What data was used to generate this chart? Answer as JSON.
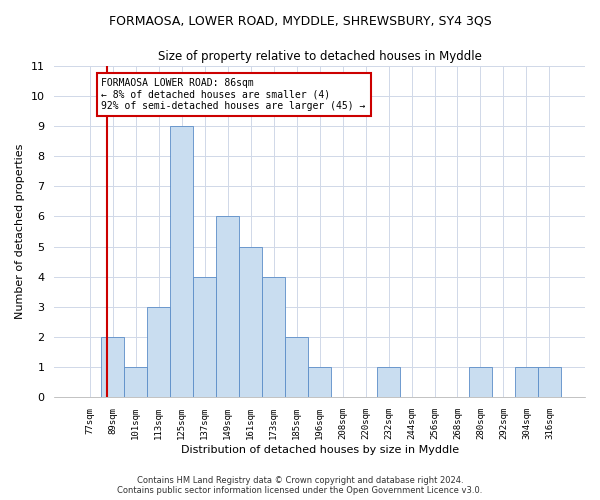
{
  "title": "FORMAOSA, LOWER ROAD, MYDDLE, SHREWSBURY, SY4 3QS",
  "subtitle": "Size of property relative to detached houses in Myddle",
  "xlabel": "Distribution of detached houses by size in Myddle",
  "ylabel": "Number of detached properties",
  "categories": [
    "77sqm",
    "89sqm",
    "101sqm",
    "113sqm",
    "125sqm",
    "137sqm",
    "149sqm",
    "161sqm",
    "173sqm",
    "185sqm",
    "196sqm",
    "208sqm",
    "220sqm",
    "232sqm",
    "244sqm",
    "256sqm",
    "268sqm",
    "280sqm",
    "292sqm",
    "304sqm",
    "316sqm"
  ],
  "values": [
    0,
    2,
    1,
    3,
    9,
    4,
    6,
    5,
    4,
    2,
    1,
    0,
    0,
    1,
    0,
    0,
    0,
    1,
    0,
    1,
    1
  ],
  "bar_color": "#c9ddf0",
  "bar_edge_color": "#5b8dc8",
  "grid_color": "#d0d8e8",
  "background_color": "#ffffff",
  "ylim": [
    0,
    11
  ],
  "yticks": [
    0,
    1,
    2,
    3,
    4,
    5,
    6,
    7,
    8,
    9,
    10,
    11
  ],
  "property_bar_index": 0.75,
  "property_line_label": "FORMAOSA LOWER ROAD: 86sqm",
  "annotation_line1": "← 8% of detached houses are smaller (4)",
  "annotation_line2": "92% of semi-detached houses are larger (45) →",
  "annotation_box_color": "#ffffff",
  "annotation_box_edge": "#cc0000",
  "footer_line1": "Contains HM Land Registry data © Crown copyright and database right 2024.",
  "footer_line2": "Contains public sector information licensed under the Open Government Licence v3.0."
}
